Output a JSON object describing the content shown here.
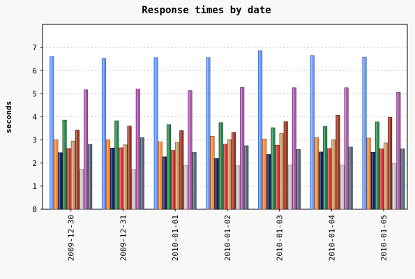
{
  "chart_data": {
    "type": "bar",
    "title": "Response times by date",
    "xlabel": "",
    "ylabel": "seconds",
    "ylim": [
      0,
      8
    ],
    "yticks": [
      0,
      1,
      2,
      3,
      4,
      5,
      6,
      7
    ],
    "grid": "horizontal dashed",
    "categories": [
      "2009-12-30",
      "2009-12-31",
      "2010-01-01",
      "2010-01-02",
      "2010-01-03",
      "2010-01-04",
      "2010-01-05"
    ],
    "series": [
      {
        "color": "#6699ff",
        "values": [
          6.62,
          6.53,
          6.56,
          6.56,
          6.86,
          6.65,
          6.58
        ]
      },
      {
        "color": "#ff8833",
        "values": [
          3.01,
          3.01,
          2.92,
          3.16,
          3.04,
          3.1,
          3.08
        ]
      },
      {
        "color": "#112266",
        "values": [
          2.45,
          2.65,
          2.27,
          2.2,
          2.37,
          2.48,
          2.47
        ]
      },
      {
        "color": "#228844",
        "values": [
          3.86,
          3.83,
          3.66,
          3.75,
          3.53,
          3.58,
          3.78
        ]
      },
      {
        "color": "#dd3333",
        "values": [
          2.63,
          2.66,
          2.55,
          2.82,
          2.77,
          2.63,
          2.62
        ]
      },
      {
        "color": "#cc9966",
        "values": [
          2.95,
          2.79,
          2.9,
          3.02,
          3.28,
          3.01,
          2.87
        ]
      },
      {
        "color": "#993322",
        "values": [
          3.43,
          3.6,
          3.41,
          3.33,
          3.79,
          4.07,
          3.98
        ]
      },
      {
        "color": "#c9c9c9",
        "values": [
          1.73,
          1.72,
          1.9,
          1.88,
          1.92,
          1.92,
          1.97
        ]
      },
      {
        "color": "#aa55aa",
        "values": [
          5.17,
          5.2,
          5.14,
          5.27,
          5.26,
          5.26,
          5.06
        ]
      },
      {
        "color": "#556677",
        "values": [
          2.81,
          3.1,
          2.46,
          2.75,
          2.59,
          2.69,
          2.62
        ]
      }
    ]
  }
}
